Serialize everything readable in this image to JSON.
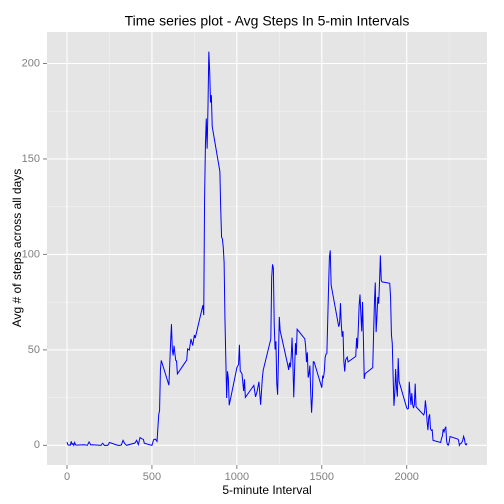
{
  "chart_data": {
    "type": "line",
    "title": "Time series plot - Avg Steps In 5-min Intervals",
    "xlabel": "5-minute Interval",
    "ylabel": "Avg # of steps across all days",
    "color": "#0000ff",
    "x": [
      0,
      5,
      10,
      15,
      20,
      25,
      30,
      35,
      40,
      45,
      50,
      55,
      100,
      110,
      120,
      130,
      140,
      150,
      200,
      210,
      220,
      230,
      240,
      250,
      300,
      310,
      320,
      330,
      340,
      350,
      400,
      410,
      420,
      430,
      440,
      450,
      455,
      500,
      510,
      520,
      530,
      540,
      545,
      550,
      555,
      600,
      610,
      615,
      620,
      625,
      630,
      640,
      645,
      650,
      700,
      705,
      710,
      720,
      730,
      740,
      750,
      755,
      800,
      805,
      810,
      815,
      820,
      825,
      830,
      835,
      840,
      845,
      850,
      855,
      900,
      905,
      910,
      915,
      920,
      925,
      930,
      935,
      940,
      945,
      950,
      955,
      1000,
      1010,
      1015,
      1020,
      1030,
      1040,
      1045,
      1050,
      1100,
      1110,
      1120,
      1130,
      1140,
      1150,
      1155,
      1200,
      1205,
      1210,
      1215,
      1220,
      1225,
      1230,
      1235,
      1240,
      1245,
      1250,
      1255,
      1300,
      1305,
      1310,
      1315,
      1320,
      1325,
      1330,
      1335,
      1340,
      1345,
      1350,
      1355,
      1400,
      1405,
      1410,
      1415,
      1420,
      1425,
      1430,
      1435,
      1440,
      1445,
      1450,
      1455,
      1500,
      1505,
      1510,
      1515,
      1520,
      1525,
      1530,
      1535,
      1540,
      1545,
      1550,
      1555,
      1600,
      1605,
      1610,
      1615,
      1620,
      1625,
      1630,
      1635,
      1640,
      1645,
      1650,
      1655,
      1700,
      1705,
      1710,
      1715,
      1720,
      1725,
      1730,
      1735,
      1740,
      1745,
      1750,
      1755,
      1800,
      1805,
      1810,
      1815,
      1820,
      1825,
      1830,
      1835,
      1840,
      1845,
      1850,
      1855,
      1900,
      1905,
      1910,
      1915,
      1920,
      1925,
      1930,
      1935,
      1940,
      1945,
      1950,
      1955,
      2000,
      2005,
      2010,
      2015,
      2020,
      2025,
      2030,
      2035,
      2040,
      2045,
      2050,
      2055,
      2100,
      2105,
      2110,
      2115,
      2120,
      2125,
      2130,
      2135,
      2140,
      2145,
      2150,
      2155,
      2200,
      2205,
      2210,
      2215,
      2220,
      2225,
      2230,
      2235,
      2240,
      2245,
      2250,
      2255,
      2300,
      2305,
      2310,
      2315,
      2320,
      2325,
      2330,
      2335,
      2340,
      2345,
      2350,
      2355
    ],
    "values": [
      1.7,
      0.3,
      0.1,
      0.2,
      0.1,
      2.1,
      0.5,
      0.9,
      0,
      1.5,
      0.3,
      0.1,
      0.3,
      0.2,
      0,
      1.8,
      0.2,
      0.3,
      0,
      1.1,
      0,
      0,
      0,
      1.5,
      0,
      0,
      0.2,
      2.6,
      0.9,
      0,
      1.2,
      2.6,
      0.4,
      4.1,
      3.5,
      3.1,
      1.1,
      0,
      3.0,
      3.3,
      2.1,
      16.0,
      18.3,
      39.5,
      44.5,
      31.5,
      53.8,
      63.5,
      50,
      47.1,
      52.2,
      44.5,
      44.2,
      37.4,
      44,
      44.7,
      50.5,
      49.9,
      55.7,
      52.3,
      57.8,
      56.2,
      73.4,
      68.2,
      129.4,
      157.5,
      171.2,
      155.4,
      177.3,
      206.2,
      195.9,
      179.6,
      183.4,
      167,
      143.5,
      124,
      109.1,
      108.1,
      103.7,
      95.9,
      66.2,
      45.2,
      24.8,
      38.8,
      35,
      21,
      40.6,
      42.4,
      52.7,
      38.9,
      37.6,
      28.4,
      34.6,
      25.1,
      31.4,
      25.4,
      28.6,
      33.3,
      21.2,
      35.1,
      39.3,
      55.7,
      87.7,
      94.8,
      92.8,
      63.4,
      50.2,
      54.5,
      32.4,
      26.5,
      46.0,
      67.3,
      60,
      42,
      39.5,
      43.3,
      40.9,
      46.2,
      56.4,
      42.8,
      25.1,
      39.9,
      53.5,
      47.3,
      60.8,
      55.8,
      51.9,
      43.6,
      48.7,
      35.5,
      37.5,
      41.8,
      27.5,
      17.1,
      26.1,
      43.8,
      43.7,
      30.2,
      36.1,
      35.5,
      38.8,
      46,
      47.8,
      48.1,
      65.3,
      82.9,
      98.7,
      102.1,
      84,
      62.1,
      64.1,
      74.5,
      63.2,
      56.9,
      59.8,
      43.9,
      38.6,
      44.7,
      45.5,
      46.2,
      43.7,
      46.6,
      56.3,
      50.7,
      61.2,
      73.4,
      79.0,
      68.9,
      59.7,
      75.1,
      56.5,
      34.8,
      37.5,
      40.7,
      58,
      74.7,
      85.3,
      59.3,
      67.8,
      77.7,
      74.2,
      85.3,
      99.5,
      86.6,
      85.6,
      84.9,
      77.8,
      58,
      53.4,
      36.3,
      20.7,
      27.4,
      40.0,
      30.2,
      25.5,
      45.7,
      33.5,
      19.6,
      19,
      19.3,
      33.3,
      26.8,
      21.2,
      27.3,
      21.3,
      19.5,
      21.3,
      32.3,
      20.2,
      15.9,
      17.2,
      23.5,
      19.2,
      12.5,
      8,
      14.7,
      16.3,
      8.7,
      7.8,
      8.1,
      2.6,
      1.5,
      3.7,
      4.8,
      8.5,
      7.1,
      8.7,
      9.8,
      2.2,
      0.3,
      0.1,
      1.6,
      4.6,
      3.3,
      2.8,
      0,
      0.8,
      1,
      1.6,
      2.6,
      4.7,
      3.3,
      0.6,
      0.2,
      1.1
    ],
    "xlim": [
      -117.75,
      2472.75
    ],
    "ylim": [
      -10.3,
      216.5
    ],
    "xticks": [
      0,
      500,
      1000,
      1500,
      2000
    ],
    "yticks": [
      0,
      50,
      100,
      150,
      200
    ],
    "xticks_minor": [
      250,
      750,
      1250,
      1750,
      2250
    ],
    "yticks_minor": [
      25,
      75,
      125,
      175
    ],
    "grid": true
  }
}
